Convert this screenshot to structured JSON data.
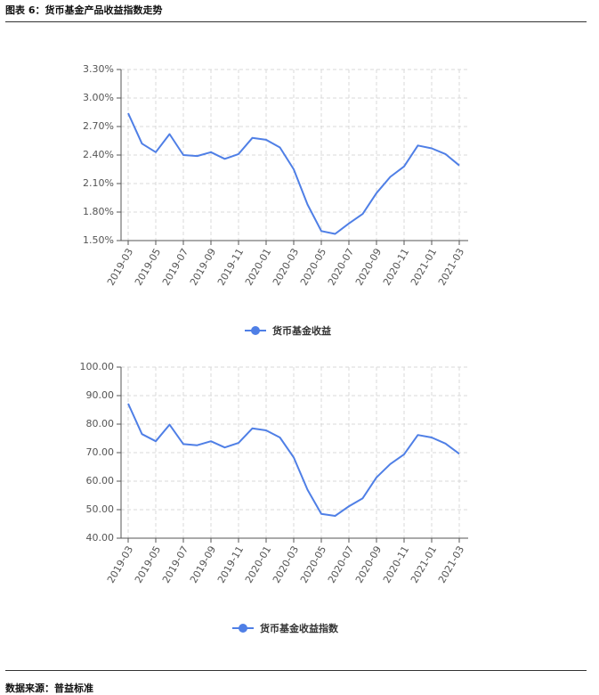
{
  "page": {
    "figure_title": "图表 6：货币基金产品收益指数走势",
    "source": "数据来源：普益标准"
  },
  "colors": {
    "line": "#4f7fe6",
    "grid": "#d9d9d9",
    "axis": "#555555"
  },
  "chart_data": [
    {
      "type": "line",
      "title": "",
      "xlabel": "",
      "ylabel": "",
      "x": [
        "2019-03",
        "2019-04",
        "2019-05",
        "2019-06",
        "2019-07",
        "2019-08",
        "2019-09",
        "2019-10",
        "2019-11",
        "2019-12",
        "2020-01",
        "2020-02",
        "2020-03",
        "2020-04",
        "2020-05",
        "2020-06",
        "2020-07",
        "2020-08",
        "2020-09",
        "2020-10",
        "2020-11",
        "2020-12",
        "2021-01",
        "2021-02",
        "2021-03"
      ],
      "x_tick_labels": [
        "2019-03",
        "2019-05",
        "2019-07",
        "2019-09",
        "2019-11",
        "2020-01",
        "2020-03",
        "2020-05",
        "2020-07",
        "2020-09",
        "2020-11",
        "2021-01",
        "2021-03"
      ],
      "y_ticks": [
        "1.50%",
        "1.80%",
        "2.10%",
        "2.40%",
        "2.70%",
        "3.00%",
        "3.30%"
      ],
      "ylim": [
        1.5,
        3.3
      ],
      "grid": true,
      "legend_position": "bottom-center",
      "series": [
        {
          "name": "货币基金收益",
          "values": [
            2.84,
            2.52,
            2.43,
            2.62,
            2.4,
            2.39,
            2.43,
            2.36,
            2.41,
            2.58,
            2.56,
            2.48,
            2.25,
            1.88,
            1.6,
            1.57,
            1.68,
            1.78,
            2.0,
            2.17,
            2.28,
            2.5,
            2.47,
            2.41,
            2.29
          ]
        }
      ]
    },
    {
      "type": "line",
      "title": "",
      "xlabel": "",
      "ylabel": "",
      "x": [
        "2019-03",
        "2019-04",
        "2019-05",
        "2019-06",
        "2019-07",
        "2019-08",
        "2019-09",
        "2019-10",
        "2019-11",
        "2019-12",
        "2020-01",
        "2020-02",
        "2020-03",
        "2020-04",
        "2020-05",
        "2020-06",
        "2020-07",
        "2020-08",
        "2020-09",
        "2020-10",
        "2020-11",
        "2020-12",
        "2021-01",
        "2021-02",
        "2021-03"
      ],
      "x_tick_labels": [
        "2019-03",
        "2019-05",
        "2019-07",
        "2019-09",
        "2019-11",
        "2020-01",
        "2020-03",
        "2020-05",
        "2020-07",
        "2020-09",
        "2020-11",
        "2021-01",
        "2021-03"
      ],
      "y_ticks": [
        "40.00",
        "50.00",
        "60.00",
        "70.00",
        "80.00",
        "90.00",
        "100.00"
      ],
      "ylim": [
        40,
        100
      ],
      "grid": true,
      "legend_position": "bottom-center",
      "series": [
        {
          "name": "货币基金收益指数",
          "values": [
            87.2,
            76.5,
            74.0,
            79.8,
            73.0,
            72.6,
            74.0,
            71.8,
            73.4,
            78.5,
            77.8,
            75.3,
            68.3,
            57.0,
            48.5,
            47.8,
            51.2,
            54.0,
            61.3,
            66.0,
            69.4,
            76.2,
            75.3,
            73.2,
            69.6
          ]
        }
      ]
    }
  ]
}
